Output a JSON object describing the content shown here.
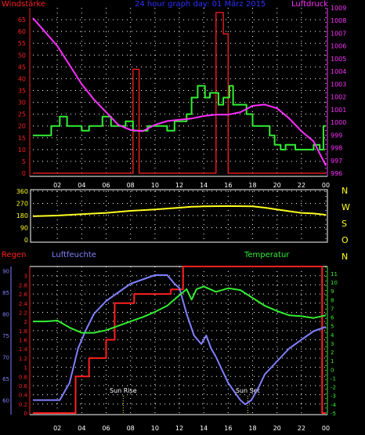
{
  "title": "24 hour graph day: 01 März 2015",
  "colors": {
    "title": "#3030ff",
    "grid": "#ffffff",
    "axis": "#ffffff",
    "wind": "#ff2020",
    "gust": "#ff2020",
    "avgwind": "#33ee33",
    "pressure": "#ff30ff",
    "winddir": "#ffff20",
    "rain": "#ff2020",
    "hum": "#8080ff",
    "temp": "#33ee33"
  },
  "chart_data": [
    {
      "type": "line",
      "title": "24 hour graph day: 01 März 2015",
      "ylabel": "Windstärke",
      "ylabel_right": "Luftdruck",
      "xticks": [
        "02",
        "04",
        "06",
        "08",
        "10",
        "12",
        "14",
        "16",
        "18",
        "20",
        "22",
        "00"
      ],
      "xlim": [
        0,
        24
      ],
      "ylim": [
        0,
        70
      ],
      "yticks": [
        0,
        5,
        10,
        15,
        20,
        25,
        30,
        35,
        40,
        45,
        50,
        55,
        60,
        65
      ],
      "ylim_right": [
        996,
        1009
      ],
      "yticks_right": [
        996,
        997,
        998,
        999,
        1000,
        1001,
        1002,
        1003,
        1004,
        1005,
        1006,
        1007,
        1008,
        1009
      ],
      "grid": true,
      "series": [
        {
          "key": "gust",
          "color": "red",
          "axis": "left",
          "step": true,
          "points": [
            [
              0,
              0
            ],
            [
              8.2,
              0
            ],
            [
              8.2,
              44
            ],
            [
              8.7,
              44
            ],
            [
              8.7,
              0
            ],
            [
              15,
              0
            ],
            [
              15,
              68
            ],
            [
              15.6,
              68
            ],
            [
              15.6,
              59
            ],
            [
              16,
              59
            ],
            [
              16,
              0
            ],
            [
              24,
              0
            ]
          ]
        },
        {
          "key": "avgwind",
          "color": "green",
          "axis": "left",
          "step": true,
          "points": [
            [
              0,
              16
            ],
            [
              1.5,
              16
            ],
            [
              1.5,
              20
            ],
            [
              2.2,
              20
            ],
            [
              2.2,
              24
            ],
            [
              2.8,
              24
            ],
            [
              2.8,
              20
            ],
            [
              4,
              20
            ],
            [
              4,
              18
            ],
            [
              4.6,
              18
            ],
            [
              4.6,
              20
            ],
            [
              5.7,
              20
            ],
            [
              5.7,
              24
            ],
            [
              6.4,
              24
            ],
            [
              6.4,
              20
            ],
            [
              7.6,
              20
            ],
            [
              7.6,
              22
            ],
            [
              8.2,
              22
            ],
            [
              8.2,
              18
            ],
            [
              9.4,
              18
            ],
            [
              9.4,
              20
            ],
            [
              11,
              20
            ],
            [
              11,
              18
            ],
            [
              11.6,
              18
            ],
            [
              11.6,
              22
            ],
            [
              12.6,
              22
            ],
            [
              12.6,
              25
            ],
            [
              13,
              25
            ],
            [
              13,
              32
            ],
            [
              13.5,
              32
            ],
            [
              13.5,
              37
            ],
            [
              14.1,
              37
            ],
            [
              14.1,
              32
            ],
            [
              14.5,
              32
            ],
            [
              14.5,
              34
            ],
            [
              15.2,
              34
            ],
            [
              15.2,
              29
            ],
            [
              15.6,
              29
            ],
            [
              15.6,
              32
            ],
            [
              16.1,
              32
            ],
            [
              16.1,
              37
            ],
            [
              16.4,
              37
            ],
            [
              16.4,
              29
            ],
            [
              17.5,
              29
            ],
            [
              17.5,
              25
            ],
            [
              18,
              25
            ],
            [
              18,
              20
            ],
            [
              19.4,
              20
            ],
            [
              19.4,
              16
            ],
            [
              19.8,
              16
            ],
            [
              19.8,
              12
            ],
            [
              20.3,
              12
            ],
            [
              20.3,
              10
            ],
            [
              20.7,
              10
            ],
            [
              20.7,
              12
            ],
            [
              21.5,
              12
            ],
            [
              21.5,
              10
            ],
            [
              23,
              10
            ],
            [
              23,
              12
            ],
            [
              23.5,
              12
            ],
            [
              23.5,
              10
            ],
            [
              23.8,
              10
            ],
            [
              23.8,
              20
            ],
            [
              24,
              20
            ]
          ]
        },
        {
          "key": "pressure",
          "color": "magenta",
          "axis": "right",
          "points": [
            [
              0,
              1008.2
            ],
            [
              1,
              1007.1
            ],
            [
              2,
              1006
            ],
            [
              3,
              1004.5
            ],
            [
              4,
              1003
            ],
            [
              5,
              1001.8
            ],
            [
              6,
              1000.8
            ],
            [
              7,
              999.8
            ],
            [
              8,
              999.4
            ],
            [
              9,
              999.3
            ],
            [
              10,
              999.8
            ],
            [
              11,
              1000.1
            ],
            [
              12,
              1000.2
            ],
            [
              13,
              1000.3
            ],
            [
              14,
              1000.5
            ],
            [
              15,
              1000.6
            ],
            [
              16,
              1000.6
            ],
            [
              17,
              1000.8
            ],
            [
              18,
              1001.3
            ],
            [
              19,
              1001.4
            ],
            [
              20,
              1001.1
            ],
            [
              21,
              1000.3
            ],
            [
              22,
              999.3
            ],
            [
              23,
              998.5
            ],
            [
              24,
              996.6
            ]
          ]
        }
      ]
    },
    {
      "type": "line",
      "ylabel_right_letters": [
        "N",
        "W",
        "S",
        "O",
        "N"
      ],
      "xlim": [
        0,
        24
      ],
      "ylim": [
        0,
        360
      ],
      "yticks": [
        0,
        90,
        180,
        270,
        360
      ],
      "grid": true,
      "series": [
        {
          "key": "winddir",
          "color": "yellow",
          "points": [
            [
              0,
              175
            ],
            [
              2,
              180
            ],
            [
              4,
              190
            ],
            [
              6,
              200
            ],
            [
              8,
              215
            ],
            [
              10,
              225
            ],
            [
              12,
              238
            ],
            [
              13,
              245
            ],
            [
              14,
              248
            ],
            [
              16,
              250
            ],
            [
              18,
              248
            ],
            [
              19,
              238
            ],
            [
              20,
              225
            ],
            [
              21,
              212
            ],
            [
              22,
              200
            ],
            [
              23,
              195
            ],
            [
              24,
              185
            ]
          ]
        }
      ]
    },
    {
      "type": "line",
      "labels": {
        "left": "Regen",
        "middle": "Luftfeuchte",
        "right": "Temperatur"
      },
      "annotations": [
        {
          "text": "Sun Rise",
          "x": 7.4
        },
        {
          "text": "Sun Set",
          "x": 17.6
        }
      ],
      "xticks": [
        "02",
        "04",
        "06",
        "08",
        "10",
        "12",
        "14",
        "16",
        "18",
        "20",
        "22",
        "00"
      ],
      "xlim": [
        0,
        24
      ],
      "ylim_rain": [
        0,
        3.2
      ],
      "yticks_rain": [
        0,
        0.2,
        0.4,
        0.6,
        0.8,
        1,
        1.2,
        1.4,
        1.6,
        1.8,
        2,
        2.2,
        2.4,
        2.6,
        2.8,
        3
      ],
      "ylim_hum": [
        57,
        91
      ],
      "yticks_hum": [
        60,
        65,
        70,
        75,
        80,
        85,
        90
      ],
      "ylim_temp": [
        -5,
        11.8
      ],
      "yticks_temp": [
        -5,
        -4,
        -3,
        -2,
        -1,
        0,
        1,
        2,
        3,
        4,
        5,
        6,
        7,
        8,
        9,
        10,
        11
      ],
      "grid": true,
      "series": [
        {
          "key": "rain",
          "color": "red",
          "axis": "rain",
          "step": true,
          "points": [
            [
              0,
              0
            ],
            [
              3.5,
              0
            ],
            [
              3.5,
              0.8
            ],
            [
              4.6,
              0.8
            ],
            [
              4.6,
              1.2
            ],
            [
              6,
              1.2
            ],
            [
              6,
              1.6
            ],
            [
              6.7,
              1.6
            ],
            [
              6.7,
              2.4
            ],
            [
              8.3,
              2.4
            ],
            [
              8.3,
              2.6
            ],
            [
              11.3,
              2.6
            ],
            [
              11.3,
              2.7
            ],
            [
              12.3,
              2.7
            ],
            [
              12.3,
              3.2
            ],
            [
              23.7,
              3.2
            ],
            [
              23.7,
              0
            ],
            [
              24,
              0
            ]
          ]
        },
        {
          "key": "hum",
          "color": "blue",
          "axis": "hum",
          "points": [
            [
              0,
              60
            ],
            [
              2.2,
              60
            ],
            [
              3,
              64
            ],
            [
              3.7,
              72
            ],
            [
              4.3,
              76
            ],
            [
              5,
              80
            ],
            [
              6,
              83
            ],
            [
              7,
              85
            ],
            [
              8,
              87
            ],
            [
              9,
              88
            ],
            [
              10,
              89
            ],
            [
              11,
              89
            ],
            [
              11.6,
              87
            ],
            [
              12,
              86
            ],
            [
              12.6,
              80
            ],
            [
              13.2,
              75
            ],
            [
              13.8,
              73
            ],
            [
              14.2,
              75
            ],
            [
              14.6,
              72
            ],
            [
              15,
              70
            ],
            [
              15.5,
              67
            ],
            [
              16,
              64
            ],
            [
              16.5,
              62
            ],
            [
              17,
              60
            ],
            [
              17.4,
              59
            ],
            [
              17.9,
              60
            ],
            [
              18.5,
              63
            ],
            [
              19,
              66
            ],
            [
              20,
              69
            ],
            [
              21,
              72
            ],
            [
              22,
              74
            ],
            [
              23,
              76
            ],
            [
              24,
              77
            ]
          ]
        },
        {
          "key": "temp",
          "color": "green",
          "axis": "temp",
          "points": [
            [
              0,
              5.5
            ],
            [
              1,
              5.5
            ],
            [
              2,
              5.6
            ],
            [
              3,
              4.8
            ],
            [
              4,
              4.2
            ],
            [
              5,
              4.2
            ],
            [
              6,
              4.5
            ],
            [
              7,
              5
            ],
            [
              8,
              5.5
            ],
            [
              9,
              6
            ],
            [
              10,
              6.6
            ],
            [
              11,
              7.3
            ],
            [
              12,
              8.5
            ],
            [
              12.6,
              9.2
            ],
            [
              13,
              8
            ],
            [
              13.4,
              9.2
            ],
            [
              14,
              9.5
            ],
            [
              15,
              8.9
            ],
            [
              16,
              9.3
            ],
            [
              17,
              9.1
            ],
            [
              18,
              8.2
            ],
            [
              19,
              7.3
            ],
            [
              20,
              6.7
            ],
            [
              21,
              6.2
            ],
            [
              22,
              6.1
            ],
            [
              23,
              5.9
            ],
            [
              24,
              6.2
            ]
          ]
        }
      ]
    }
  ],
  "panel1": {
    "ylabel": "Windstärke",
    "ylabel_right": "Luftdruck"
  },
  "panel2": {
    "letters": [
      "N",
      "W",
      "S",
      "O",
      "N"
    ]
  },
  "panel3": {
    "left": "Regen",
    "middle": "Luftfeuchte",
    "right": "Temperatur",
    "sunrise": "Sun Rise",
    "sunset": "Sun Set"
  }
}
